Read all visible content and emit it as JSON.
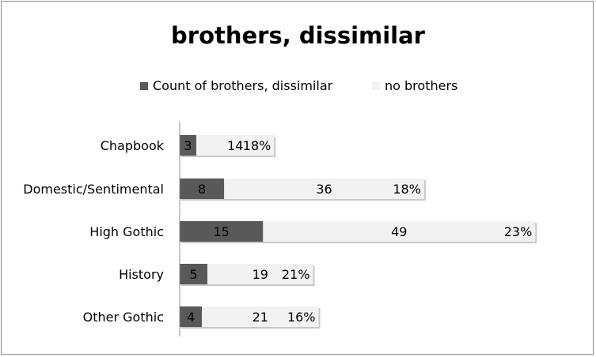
{
  "chart_data": {
    "type": "bar",
    "orientation": "horizontal",
    "stacked": true,
    "title": "brothers, dissimilar",
    "categories": [
      "Chapbook",
      "Domestic/Sentimental",
      "High Gothic",
      "History",
      "Other Gothic"
    ],
    "series": [
      {
        "name": "Count of brothers, dissimilar",
        "values": [
          3,
          8,
          15,
          5,
          4
        ],
        "color": "#595959"
      },
      {
        "name": "no brothers",
        "values": [
          14,
          36,
          49,
          19,
          21
        ],
        "color": "#f2f2f2"
      }
    ],
    "percent_labels": [
      "18%",
      "18%",
      "23%",
      "21%",
      "16%"
    ],
    "legend_position": "top",
    "grid": false
  }
}
